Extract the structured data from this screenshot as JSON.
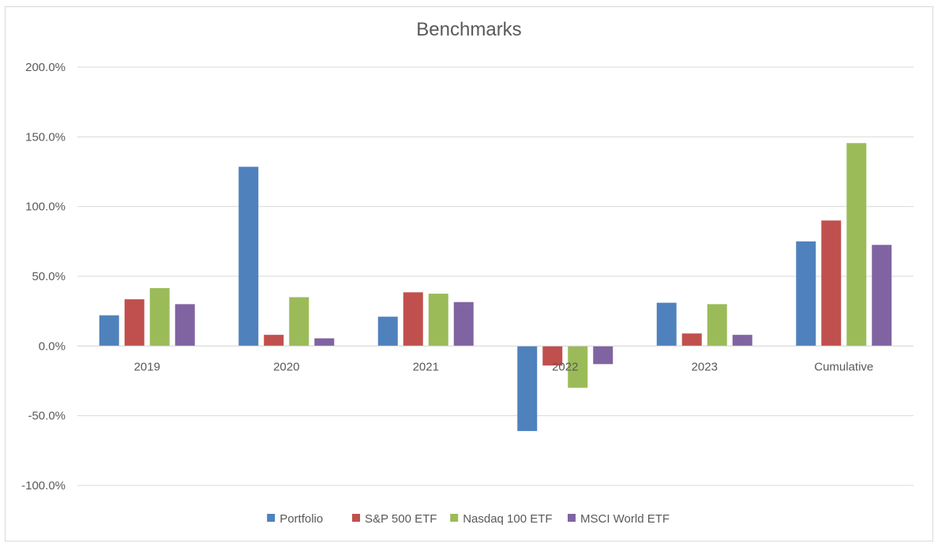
{
  "chart_data": {
    "type": "bar",
    "title": "Benchmarks",
    "xlabel": "",
    "ylabel": "",
    "categories": [
      "2019",
      "2020",
      "2021",
      "2022",
      "2023",
      "Cumulative"
    ],
    "series": [
      {
        "name": "Portfolio",
        "color": "#4f81bd",
        "values": [
          22.0,
          128.5,
          21.0,
          -61.0,
          31.0,
          75.0
        ]
      },
      {
        "name": "S&P 500 ETF",
        "color": "#c0504d",
        "values": [
          33.5,
          8.0,
          38.5,
          -14.0,
          9.0,
          90.0
        ]
      },
      {
        "name": "Nasdaq 100 ETF",
        "color": "#9bbb59",
        "values": [
          41.5,
          35.0,
          37.5,
          -30.0,
          30.0,
          145.5
        ]
      },
      {
        "name": "MSCI World ETF",
        "color": "#8064a2",
        "values": [
          30.0,
          5.5,
          31.5,
          -13.0,
          8.0,
          72.5
        ]
      }
    ],
    "ylim": [
      -100,
      200
    ],
    "yticks": [
      "200.0%",
      "150.0%",
      "100.0%",
      "50.0%",
      "0.0%",
      "-50.0%",
      "-100.0%"
    ],
    "ytick_values": [
      200,
      150,
      100,
      50,
      0,
      -50,
      -100
    ],
    "grid": true,
    "legend_position": "bottom",
    "gridline_color": "#d9d9d9"
  }
}
